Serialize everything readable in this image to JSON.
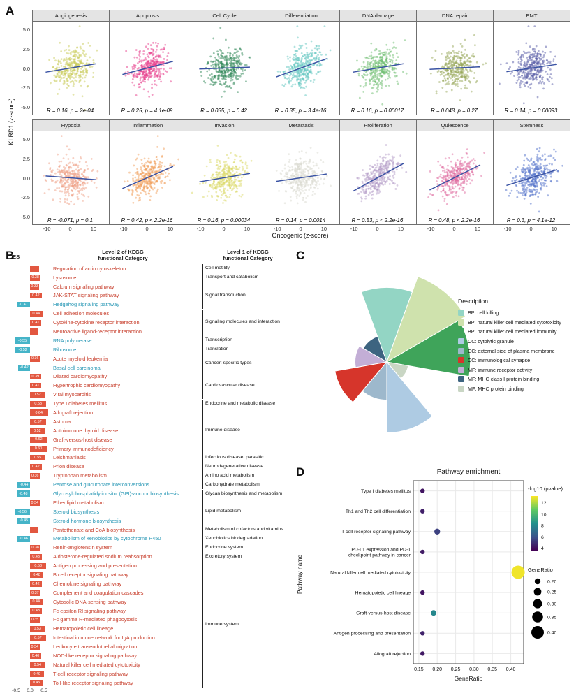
{
  "labels": {
    "a": "A",
    "b": "B",
    "c": "C",
    "d": "D"
  },
  "chart_data": [
    {
      "panel": "A",
      "type": "scatter",
      "ylabel": "KLRD1 (z-score)",
      "xlabel": "Oncogenic (z-score)",
      "y_ticks": [
        "5.0",
        "2.5",
        "0.0",
        "-2.5",
        "-5.0"
      ],
      "x_ticks": [
        "-10",
        "0",
        "10"
      ],
      "ylim": [
        -5,
        5
      ],
      "xlim": [
        -16,
        16
      ],
      "line_color": "#3a53a4",
      "facets": [
        {
          "title": "Angiogenesis",
          "color": "#c9cc59",
          "r": 0.16,
          "annotation": "R = 0.16, p = 2e-04"
        },
        {
          "title": "Apoptosis",
          "color": "#e83d8c",
          "r": 0.25,
          "annotation": "R = 0.25, p = 4.1e-09"
        },
        {
          "title": "Cell Cycle",
          "color": "#2f8757",
          "r": 0.035,
          "annotation": "R = 0.035, p = 0.42"
        },
        {
          "title": "Differentiation",
          "color": "#5fc5c0",
          "r": 0.35,
          "annotation": "R = 0.35, p = 3.4e-16"
        },
        {
          "title": "DNA damage",
          "color": "#6dbd70",
          "r": 0.16,
          "annotation": "R = 0.16, p = 0.00017"
        },
        {
          "title": "DNA repair",
          "color": "#97a859",
          "r": 0.048,
          "annotation": "R = 0.048, p = 0.27"
        },
        {
          "title": "EMT",
          "color": "#5a5ea8",
          "r": 0.14,
          "annotation": "R = 0.14, p = 0.00093"
        },
        {
          "title": "Hypoxia",
          "color": "#f0a187",
          "r": -0.071,
          "annotation": "R = -0.071, p = 0.1"
        },
        {
          "title": "Inflammation",
          "color": "#f2a05c",
          "r": 0.42,
          "annotation": "R = 0.42, p < 2.2e-16"
        },
        {
          "title": "Invasion",
          "color": "#dcd968",
          "r": 0.16,
          "annotation": "R = 0.16, p = 0.00034"
        },
        {
          "title": "Metastasis",
          "color": "#d9d9cf",
          "r": 0.14,
          "annotation": "R = 0.14, p = 0.0014"
        },
        {
          "title": "Proliferation",
          "color": "#b39bc8",
          "r": 0.53,
          "annotation": "R = 0.53, p < 2.2e-16"
        },
        {
          "title": "Quiescence",
          "color": "#e06b9f",
          "r": 0.48,
          "annotation": "R = 0.48, p < 2.2e-16"
        },
        {
          "title": "Stemness",
          "color": "#4f6fc9",
          "r": 0.3,
          "annotation": "R = 0.3, p = 4.1e-12"
        }
      ]
    },
    {
      "panel": "B",
      "type": "bar",
      "headers": {
        "es": "ES",
        "level2": "Level 2 of KEGG\nfunctional Category",
        "level1": "Level 1 of KEGG\nfunctional Category"
      },
      "axis_ticks": [
        "-0.5",
        "0.0",
        "0.5"
      ],
      "colors": {
        "up_bar": "#e25740",
        "up_text": "#c8402e",
        "down_bar": "#45b4c8",
        "down_text": "#2596b4"
      },
      "rows": [
        {
          "label": "Regulation of actin cytoskeleton",
          "es": 0.32,
          "group": "Cell motility"
        },
        {
          "label": "Lysosome",
          "es": 0.38,
          "group": "Transport and catabolism"
        },
        {
          "label": "Calcium signaling pathway",
          "es": 0.33,
          "group": "Signal transduction"
        },
        {
          "label": "JAK-STAT signaling pathway",
          "es": 0.42,
          "group": "Signal transduction"
        },
        {
          "label": "Hedgehog signaling pathway",
          "es": -0.47,
          "group": "Signal transduction"
        },
        {
          "label": "Cell adhesion molecules",
          "es": 0.44,
          "group": "Signaling molecules and interaction"
        },
        {
          "label": "Cytokine-cytokine receptor interaction",
          "es": 0.41,
          "group": "Signaling molecules and interaction"
        },
        {
          "label": "Neuroactive ligand-receptor interaction",
          "es": 0.29,
          "group": "Signaling molecules and interaction"
        },
        {
          "label": "RNA polymerase",
          "es": -0.55,
          "group": "Transcription"
        },
        {
          "label": "Ribosome",
          "es": -0.52,
          "group": "Translation"
        },
        {
          "label": "Acute myeloid leukemia",
          "es": 0.36,
          "group": "Cancer: specific types"
        },
        {
          "label": "Basal cell carcinoma",
          "es": -0.42,
          "group": "Cancer: specific types"
        },
        {
          "label": "Dilated cardiomyopathy",
          "es": 0.39,
          "group": "Cardiovascular disease"
        },
        {
          "label": "Hypertrophic cardiomyopathy",
          "es": 0.41,
          "group": "Cardiovascular disease"
        },
        {
          "label": "Viral myocarditis",
          "es": 0.52,
          "group": "Cardiovascular disease"
        },
        {
          "label": "Type I diabetes mellitus",
          "es": 0.58,
          "group": "Endocrine and metabolic disease"
        },
        {
          "label": "Allograft rejection",
          "es": 0.64,
          "group": "Immune disease"
        },
        {
          "label": "Asthma",
          "es": 0.57,
          "group": "Immune disease"
        },
        {
          "label": "Autoimmune thyroid disease",
          "es": 0.52,
          "group": "Immune disease"
        },
        {
          "label": "Graft-versus-host disease",
          "es": 0.62,
          "group": "Immune disease"
        },
        {
          "label": "Primary immunodeficiency",
          "es": 0.6,
          "group": "Immune disease"
        },
        {
          "label": "Leishmaniasis",
          "es": 0.55,
          "group": "Infectious disease: parasitic"
        },
        {
          "label": "Prion disease",
          "es": 0.42,
          "group": "Neurodegenerative disease"
        },
        {
          "label": "Tryptophan metabolism",
          "es": 0.36,
          "group": "Amino acid metabolism"
        },
        {
          "label": "Pentose and glucuronate interconversions",
          "es": -0.44,
          "group": "Carbohydrate metabolism"
        },
        {
          "label": "Glycosylphosphatidylinositol (GPI)-anchor biosynthesis",
          "es": -0.48,
          "group": "Glycan biosynthesis and metabolism"
        },
        {
          "label": "Ether lipid metabolism",
          "es": 0.34,
          "group": "Lipid metabolism"
        },
        {
          "label": "Steroid biosynthesis",
          "es": -0.56,
          "group": "Lipid metabolism"
        },
        {
          "label": "Steroid hormone biosynthesis",
          "es": -0.45,
          "group": "Lipid metabolism"
        },
        {
          "label": "Pantothenate and CoA biosynthesis",
          "es": 0.3,
          "group": "Metabolism of cofactors and vitamins"
        },
        {
          "label": "Metabolism of xenobiotics by cytochrome P450",
          "es": -0.46,
          "group": "Xenobiotics biodegradation"
        },
        {
          "label": "Renin-angiotensin system",
          "es": 0.38,
          "group": "Endocrine system"
        },
        {
          "label": "Aldosterone-regulated sodium reabsorption",
          "es": 0.43,
          "group": "Excretory system"
        },
        {
          "label": "Antigen processing and presentation",
          "es": 0.58,
          "group": "Immune system"
        },
        {
          "label": "B cell receptor signaling pathway",
          "es": 0.48,
          "group": "Immune system"
        },
        {
          "label": "Chemokine signaling pathway",
          "es": 0.42,
          "group": "Immune system"
        },
        {
          "label": "Complement and coagulation cascades",
          "es": 0.37,
          "group": "Immune system"
        },
        {
          "label": "Cytosolic DNA-sensing pathway",
          "es": 0.44,
          "group": "Immune system"
        },
        {
          "label": "Fc epsilon RI signaling pathway",
          "es": 0.43,
          "group": "Immune system"
        },
        {
          "label": "Fc gamma R-mediated phagocytosis",
          "es": 0.35,
          "group": "Immune system"
        },
        {
          "label": "Hematopoietic cell lineage",
          "es": 0.53,
          "group": "Immune system"
        },
        {
          "label": "Intestinal immune network for IgA production",
          "es": 0.57,
          "group": "Immune system"
        },
        {
          "label": "Leukocyte transendothelial migration",
          "es": 0.34,
          "group": "Immune system"
        },
        {
          "label": "NOD-like receptor signaling pathway",
          "es": 0.4,
          "group": "Immune system"
        },
        {
          "label": "Natural killer cell mediated cytotoxicity",
          "es": 0.54,
          "group": "Immune system"
        },
        {
          "label": "T cell receptor signaling pathway",
          "es": 0.49,
          "group": "Immune system"
        },
        {
          "label": "Toll-like receptor signaling pathway",
          "es": 0.45,
          "group": "Immune system"
        }
      ]
    },
    {
      "panel": "C",
      "type": "pie",
      "legend_title": "Description",
      "segments": [
        {
          "label": "BP: cell killing",
          "color": "#93d5c4",
          "value": 0.82,
          "wedge_index": 0
        },
        {
          "label": "BP: natural killer cell mediated cytotoxicity",
          "color": "#cfe2ad",
          "value": 1.0,
          "wedge_index": 1
        },
        {
          "label": "BP: natural killer cell mediated immunity",
          "color": "#3fa45a",
          "value": 0.92,
          "wedge_index": 2
        },
        {
          "label": "CC: cytolytic granule",
          "color": "#aecbe3",
          "value": 0.78,
          "wedge_index": 4
        },
        {
          "label": "CC: external side of plasma membrane",
          "color": "#9db8cc",
          "value": 0.42,
          "wedge_index": 5
        },
        {
          "label": "CC: immunological synapse",
          "color": "#d6352b",
          "value": 0.58,
          "wedge_index": 6
        },
        {
          "label": "MF: immune receptor activity",
          "color": "#c3aed6",
          "value": 0.35,
          "wedge_index": 7
        },
        {
          "label": "MF: MHC class I protein binding",
          "color": "#3d6480",
          "value": 0.3,
          "wedge_index": 8
        },
        {
          "label": "MF: MHC protein binding",
          "color": "#c9d6c4",
          "value": 0.24,
          "wedge_index": 3
        }
      ]
    },
    {
      "panel": "D",
      "type": "scatter",
      "title": "Pathway enrichment",
      "xlabel": "GeneRatio",
      "ylabel": "Pathway name",
      "x_ticks": [
        0.15,
        0.2,
        0.25,
        0.3,
        0.35,
        0.4
      ],
      "color_legend": {
        "title": "-log10 (pvalue)",
        "ticks": [
          12,
          10,
          8,
          6,
          4
        ]
      },
      "size_legend": {
        "title": "GeneRatio",
        "values": [
          0.2,
          0.25,
          0.3,
          0.35,
          0.4
        ]
      },
      "points": [
        {
          "pathway": "Type I diabetes mellitus",
          "gene_ratio": 0.16,
          "neglog10_pvalue": 4.2
        },
        {
          "pathway": "Th1 and Th2 cell differentiation",
          "gene_ratio": 0.16,
          "neglog10_pvalue": 4.5
        },
        {
          "pathway": "T cell receptor signaling pathway",
          "gene_ratio": 0.2,
          "neglog10_pvalue": 5.5
        },
        {
          "pathway": "PD-L1 expression and PD-1 checkpoint pathway in cancer",
          "gene_ratio": 0.16,
          "neglog10_pvalue": 4.4,
          "label_lines": [
            "PD-L1 expression and PD-1",
            "checkpoint pathway in cancer"
          ]
        },
        {
          "pathway": "Natural killer cell mediated cytotoxicity",
          "gene_ratio": 0.42,
          "neglog10_pvalue": 13.0
        },
        {
          "pathway": "Hematopoietic cell lineage",
          "gene_ratio": 0.16,
          "neglog10_pvalue": 4.2
        },
        {
          "pathway": "Graft-versus-host disease",
          "gene_ratio": 0.19,
          "neglog10_pvalue": 8.0
        },
        {
          "pathway": "Antigen processing and presentation",
          "gene_ratio": 0.16,
          "neglog10_pvalue": 4.6
        },
        {
          "pathway": "Allograft rejection",
          "gene_ratio": 0.16,
          "neglog10_pvalue": 4.3
        }
      ]
    }
  ]
}
